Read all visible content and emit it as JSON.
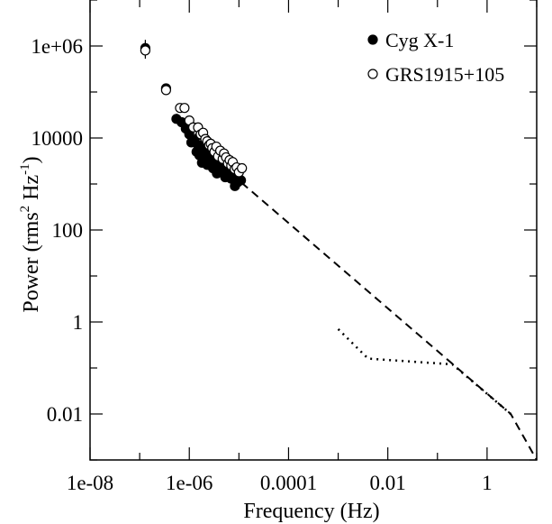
{
  "chart_data": {
    "type": "scatter",
    "xlabel": "Frequency (Hz)",
    "ylabel": {
      "parts": [
        "Power (rms",
        "2",
        " Hz",
        "-1",
        ")"
      ]
    },
    "xscale": "log",
    "yscale": "log",
    "xlim": [
      1e-08,
      10
    ],
    "ylim": [
      0.001,
      10000000
    ],
    "xticks": [
      {
        "value": 1e-08,
        "label": "1e-08"
      },
      {
        "value": 1e-06,
        "label": "1e-06"
      },
      {
        "value": 0.0001,
        "label": "0.0001"
      },
      {
        "value": 0.01,
        "label": "0.01"
      },
      {
        "value": 1,
        "label": "1"
      }
    ],
    "yticks": [
      {
        "value": 1000000,
        "label": "1e+06"
      },
      {
        "value": 10000,
        "label": "10000"
      },
      {
        "value": 100,
        "label": "100"
      },
      {
        "value": 1,
        "label": "1"
      },
      {
        "value": 0.01,
        "label": "0.01"
      }
    ],
    "legend_position": "top-right",
    "series": [
      {
        "name": "Cyg X-1",
        "marker": "filled-circle",
        "color": "#000000",
        "points": [
          [
            1.3e-07,
            900000,
            0.18
          ],
          [
            3.4e-07,
            120000,
            0.0
          ],
          [
            5.5e-07,
            26000,
            0.0
          ],
          [
            7e-07,
            22000,
            0.0
          ],
          [
            8.5e-07,
            16000,
            0.0
          ],
          [
            1e-06,
            12000,
            0.0
          ],
          [
            1.1e-06,
            8000,
            0.0
          ],
          [
            1.25e-06,
            9000,
            0.0
          ],
          [
            1.4e-06,
            5000,
            0.0
          ],
          [
            1.5e-06,
            7000,
            0.0
          ],
          [
            1.6e-06,
            4200,
            0.0
          ],
          [
            1.8e-06,
            2900,
            0.0
          ],
          [
            1.9e-06,
            5200,
            0.0
          ],
          [
            2e-06,
            3600,
            0.0
          ],
          [
            2.2e-06,
            6000,
            0.0
          ],
          [
            2.3e-06,
            2600,
            0.0
          ],
          [
            2.5e-06,
            4200,
            0.0
          ],
          [
            2.7e-06,
            3000,
            0.0
          ],
          [
            2.8e-06,
            5000,
            0.0
          ],
          [
            3e-06,
            2200,
            0.0
          ],
          [
            3.2e-06,
            4000,
            0.0
          ],
          [
            3.4e-06,
            2800,
            0.0
          ],
          [
            3.6e-06,
            1700,
            0.0
          ],
          [
            3.8e-06,
            3300,
            0.0
          ],
          [
            4e-06,
            2400,
            0.0
          ],
          [
            4.3e-06,
            3000,
            0.0
          ],
          [
            4.6e-06,
            1900,
            0.0
          ],
          [
            5e-06,
            2700,
            0.0
          ],
          [
            5.3e-06,
            1400,
            0.0
          ],
          [
            5.6e-06,
            2500,
            0.0
          ],
          [
            6e-06,
            2000,
            0.0
          ],
          [
            6.3e-06,
            1600,
            0.0
          ],
          [
            6.7e-06,
            2200,
            0.0
          ],
          [
            7e-06,
            1300,
            0.0
          ],
          [
            7.5e-06,
            1800,
            0.0
          ],
          [
            8e-06,
            1500,
            0.0
          ],
          [
            8.3e-06,
            900,
            0.0
          ],
          [
            8.8e-06,
            1200,
            0.0
          ],
          [
            9.5e-06,
            1100,
            0.0
          ],
          [
            1.1e-05,
            1200,
            0.0
          ]
        ]
      },
      {
        "name": "GRS1915+105",
        "marker": "open-circle",
        "color": "#000000",
        "points": [
          [
            1.3e-07,
            800000,
            0.18
          ],
          [
            3.4e-07,
            110000,
            0.0
          ],
          [
            6.5e-07,
            45000,
            0.0
          ],
          [
            8e-07,
            45000,
            0.0
          ],
          [
            1e-06,
            24000,
            0.0
          ],
          [
            1.2e-06,
            17000,
            0.0
          ],
          [
            1.5e-06,
            17000,
            0.0
          ],
          [
            1.7e-06,
            12000,
            0.0
          ],
          [
            1.9e-06,
            13000,
            0.0
          ],
          [
            2.1e-06,
            9500,
            0.0
          ],
          [
            2.3e-06,
            8500,
            0.0
          ],
          [
            2.5e-06,
            7000,
            0.0
          ],
          [
            2.7e-06,
            7500,
            0.0
          ],
          [
            2.9e-06,
            6000,
            0.0
          ],
          [
            3.2e-06,
            5000,
            0.0
          ],
          [
            3.5e-06,
            6500,
            0.0
          ],
          [
            3.8e-06,
            4000,
            0.0
          ],
          [
            4.2e-06,
            5300,
            0.0
          ],
          [
            4.7e-06,
            3500,
            0.0
          ],
          [
            5e-06,
            4600,
            0.0
          ],
          [
            5.5e-06,
            3800,
            0.0
          ],
          [
            6e-06,
            2800,
            0.0
          ],
          [
            6.5e-06,
            3300,
            0.0
          ],
          [
            7e-06,
            2500,
            0.0
          ],
          [
            7.5e-06,
            3000,
            0.0
          ],
          [
            8.2e-06,
            2100,
            0.0
          ],
          [
            9e-06,
            2300,
            0.0
          ],
          [
            1e-05,
            1800,
            0.0
          ],
          [
            1.15e-05,
            2200,
            0.0
          ]
        ]
      }
    ],
    "lines": [
      {
        "style": "dashed",
        "points": [
          [
            5.5e-07,
            33000
          ],
          [
            1e-05,
            1200
          ],
          [
            3.0,
            0.01
          ],
          [
            10,
            0.001
          ]
        ]
      },
      {
        "style": "dotted",
        "points": [
          [
            0.001,
            0.7
          ],
          [
            0.004,
            0.16
          ],
          [
            0.2,
            0.12
          ],
          [
            3.0,
            0.01
          ]
        ]
      }
    ]
  }
}
